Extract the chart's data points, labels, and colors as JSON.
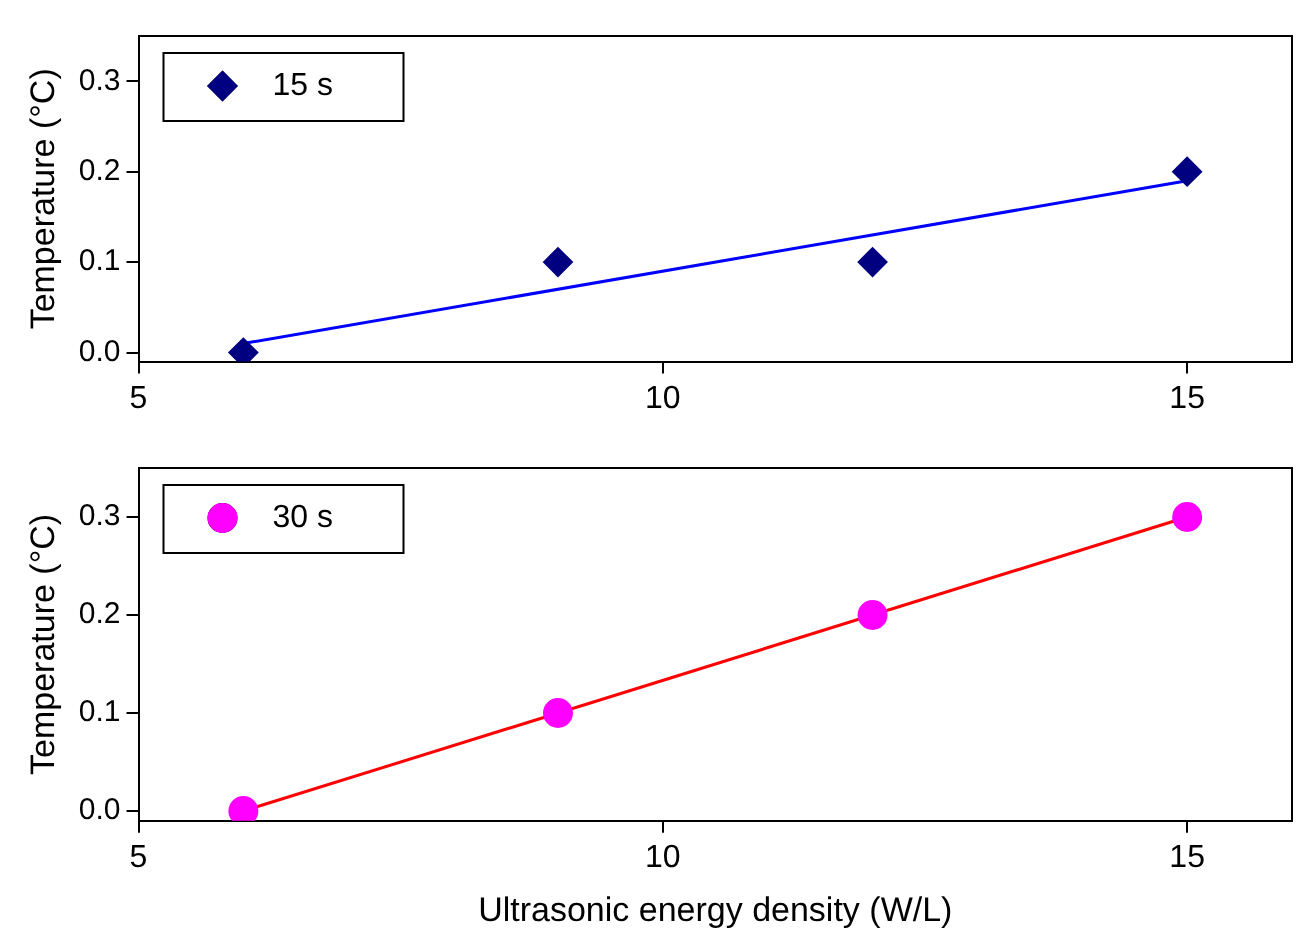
{
  "chart_data": [
    {
      "type": "scatter",
      "ylabel": "Temperature (°C)",
      "xlim": [
        5,
        16
      ],
      "xticks": [
        5,
        10,
        15
      ],
      "ylim": [
        -0.01,
        0.35
      ],
      "yticks": [
        {
          "value": 0,
          "label": "0.0"
        },
        {
          "value": 0.1,
          "label": "0.1"
        },
        {
          "value": 0.2,
          "label": "0.2"
        },
        {
          "value": 0.3,
          "label": "0.3"
        }
      ],
      "grid": false,
      "legend": "top left",
      "series": [
        {
          "name": "15 s",
          "color": "#000080",
          "x": [
            6,
            9,
            12,
            15
          ],
          "values": [
            0,
            0.1,
            0.1,
            0.2
          ],
          "marker": "diamond"
        },
        {
          "type": "line",
          "color": "#0000ff",
          "x": [
            6,
            15
          ],
          "values": [
            0.01,
            0.19
          ],
          "marker": "none"
        }
      ]
    },
    {
      "type": "scatter",
      "xlabel": "Ultrasonic energy density (W/L)",
      "ylabel": "Temperature (°C)",
      "xlim": [
        5,
        16
      ],
      "xticks": [
        5,
        10,
        15
      ],
      "ylim": [
        -0.01,
        0.35
      ],
      "yticks": [
        {
          "value": 0,
          "label": "0.0"
        },
        {
          "value": 0.1,
          "label": "0.1"
        },
        {
          "value": 0.2,
          "label": "0.2"
        },
        {
          "value": 0.3,
          "label": "0.3"
        }
      ],
      "grid": false,
      "legend": "top left",
      "series": [
        {
          "name": "30 s",
          "color": "#ff00ff",
          "x": [
            6,
            9,
            12,
            15
          ],
          "values": [
            0,
            0.1,
            0.2,
            0.3
          ],
          "marker": "circle"
        },
        {
          "type": "line",
          "color": "#ff0000",
          "x": [
            6,
            15
          ],
          "values": [
            0,
            0.3
          ],
          "marker": "none"
        }
      ]
    }
  ]
}
